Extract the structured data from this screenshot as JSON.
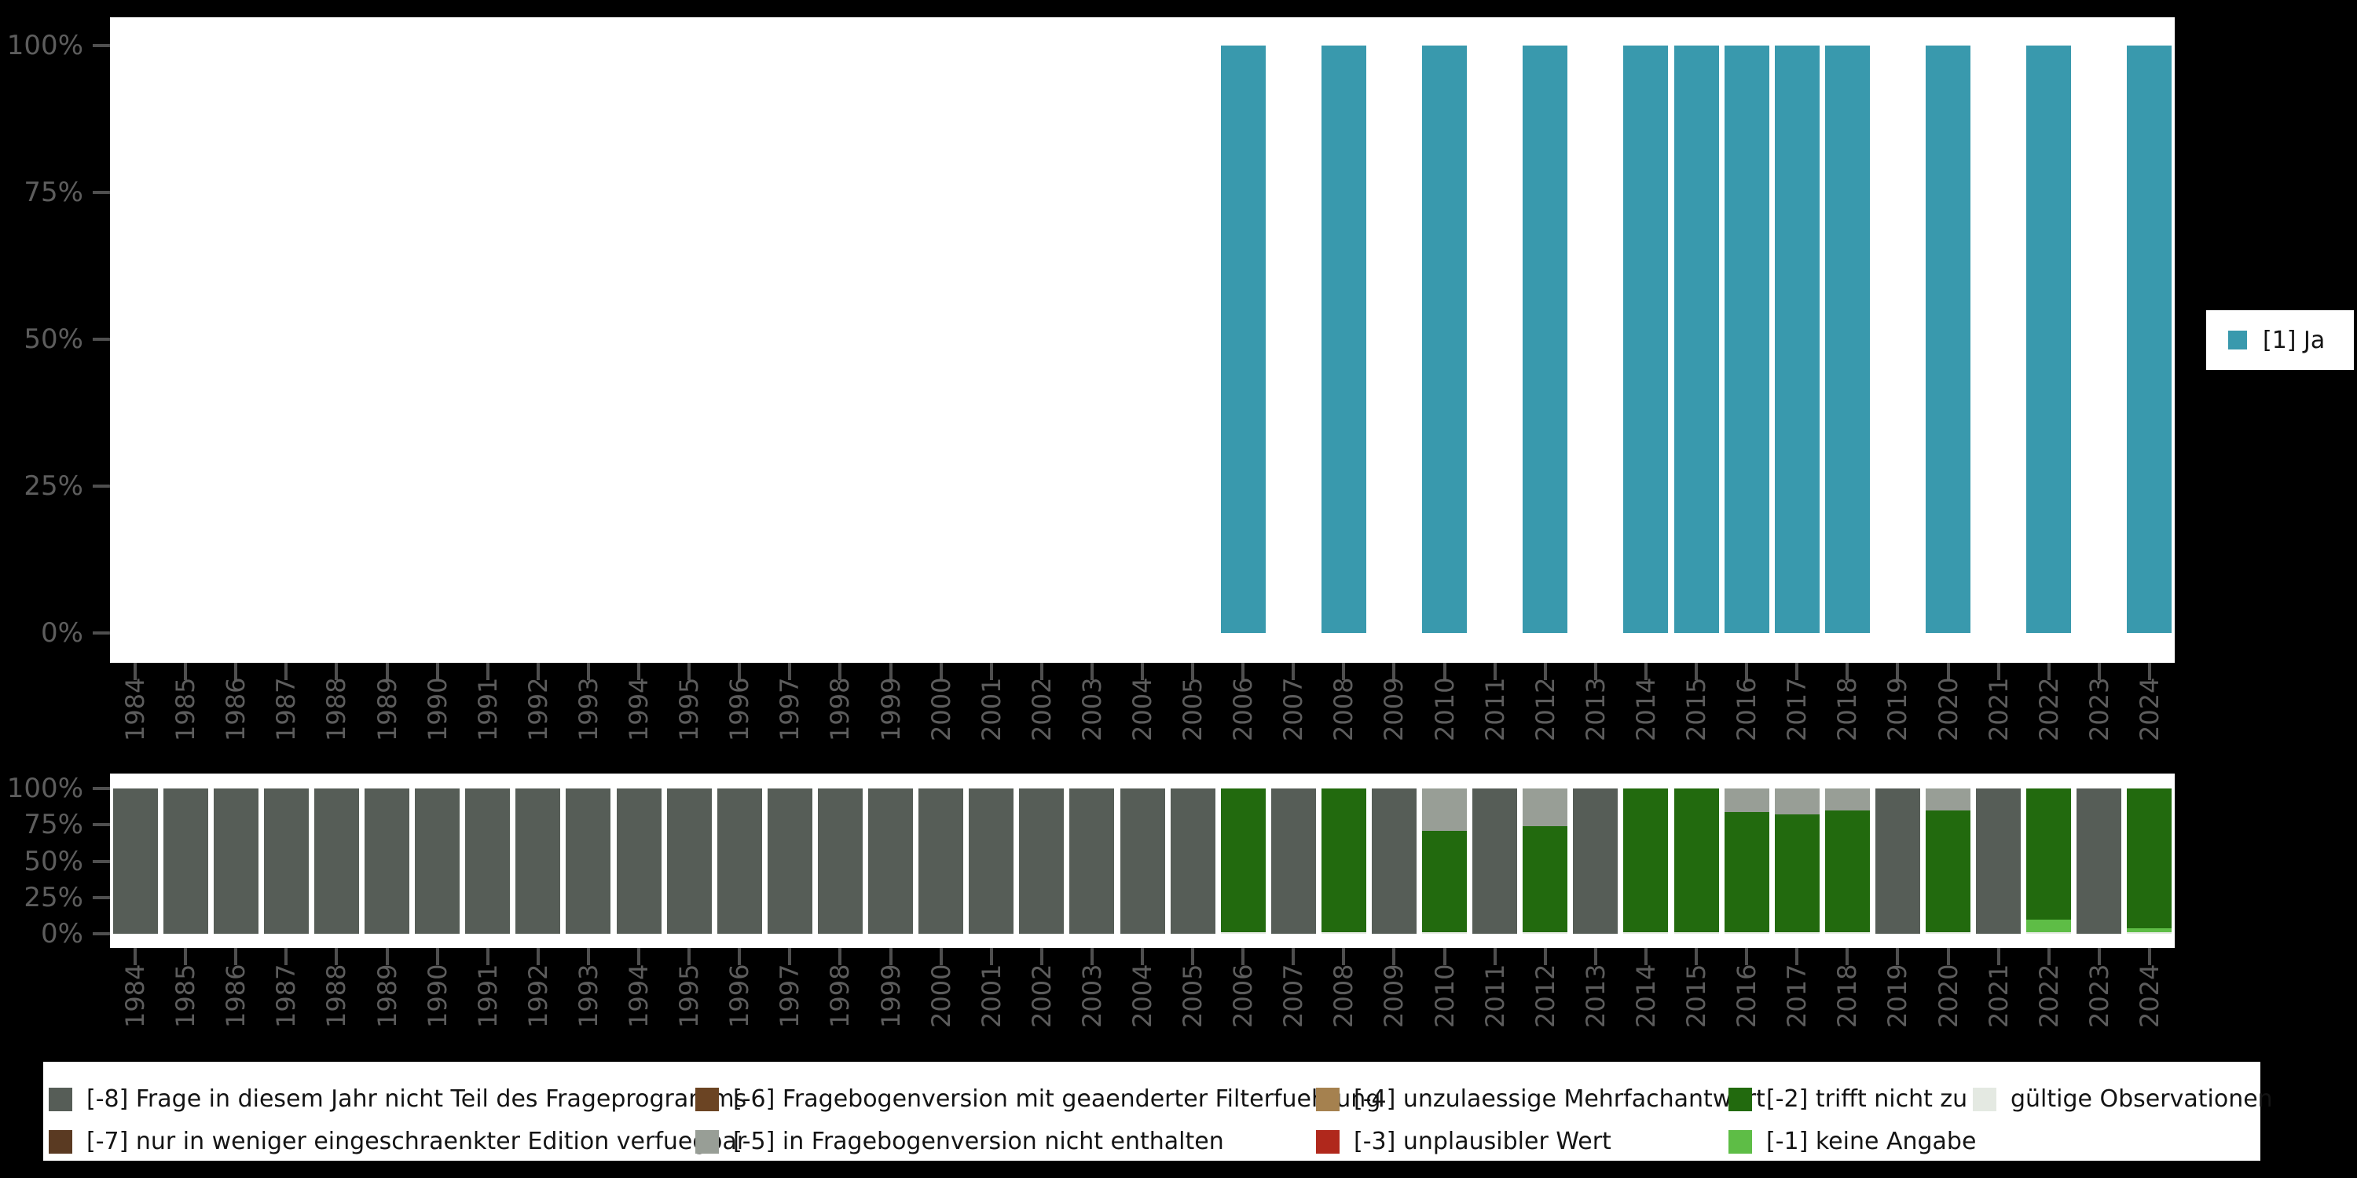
{
  "colors": {
    "background": "#000000",
    "panel": "#ffffff",
    "axis_text": "#5d5d5d",
    "tick": "#4f4f4f",
    "legend_text": "#141414",
    "categories": {
      "ja": "#3999AD",
      "-8": "#565D57",
      "-7": "#5A3A22",
      "-6": "#6B4423",
      "-5": "#989E96",
      "-4": "#A5814F",
      "-3": "#B0281C",
      "-2": "#226A0E",
      "-1": "#5EBD46",
      "valid": "#E4E9E2"
    }
  },
  "top_legend": {
    "label": "[1] Ja",
    "color_key": "ja"
  },
  "chart_data": [
    {
      "type": "bar",
      "title": "",
      "ylabel": "",
      "ylim": [
        0,
        100
      ],
      "grid": false,
      "legend_position": "right",
      "legend": [
        {
          "label": "[1] Ja",
          "color_key": "ja"
        }
      ],
      "y_ticks": [
        "100%",
        "75%",
        "50%",
        "25%",
        "0%"
      ],
      "categories": [
        1984,
        1985,
        1986,
        1987,
        1988,
        1989,
        1990,
        1991,
        1992,
        1993,
        1994,
        1995,
        1996,
        1997,
        1998,
        1999,
        2000,
        2001,
        2002,
        2003,
        2004,
        2005,
        2006,
        2007,
        2008,
        2009,
        2010,
        2011,
        2012,
        2013,
        2014,
        2015,
        2016,
        2017,
        2018,
        2019,
        2020,
        2021,
        2022,
        2023,
        2024
      ],
      "series": [
        {
          "name": "[1] Ja",
          "color_key": "ja",
          "values": [
            0,
            0,
            0,
            0,
            0,
            0,
            0,
            0,
            0,
            0,
            0,
            0,
            0,
            0,
            0,
            0,
            0,
            0,
            0,
            0,
            0,
            0,
            100,
            0,
            100,
            0,
            100,
            0,
            100,
            0,
            100,
            100,
            100,
            100,
            100,
            0,
            100,
            0,
            100,
            0,
            100
          ]
        }
      ]
    },
    {
      "type": "stacked-bar",
      "title": "",
      "ylabel": "",
      "ylim": [
        0,
        100
      ],
      "y_ticks": [
        "100%",
        "75%",
        "50%",
        "25%",
        "0%"
      ],
      "categories": [
        1984,
        1985,
        1986,
        1987,
        1988,
        1989,
        1990,
        1991,
        1992,
        1993,
        1994,
        1995,
        1996,
        1997,
        1998,
        1999,
        2000,
        2001,
        2002,
        2003,
        2004,
        2005,
        2006,
        2007,
        2008,
        2009,
        2010,
        2011,
        2012,
        2013,
        2014,
        2015,
        2016,
        2017,
        2018,
        2019,
        2020,
        2021,
        2022,
        2023,
        2024
      ],
      "bars": [
        {
          "year": 1984,
          "segments": [
            {
              "code": "-8",
              "pct": 100
            }
          ]
        },
        {
          "year": 1985,
          "segments": [
            {
              "code": "-8",
              "pct": 100
            }
          ]
        },
        {
          "year": 1986,
          "segments": [
            {
              "code": "-8",
              "pct": 100
            }
          ]
        },
        {
          "year": 1987,
          "segments": [
            {
              "code": "-8",
              "pct": 100
            }
          ]
        },
        {
          "year": 1988,
          "segments": [
            {
              "code": "-8",
              "pct": 100
            }
          ]
        },
        {
          "year": 1989,
          "segments": [
            {
              "code": "-8",
              "pct": 100
            }
          ]
        },
        {
          "year": 1990,
          "segments": [
            {
              "code": "-8",
              "pct": 100
            }
          ]
        },
        {
          "year": 1991,
          "segments": [
            {
              "code": "-8",
              "pct": 100
            }
          ]
        },
        {
          "year": 1992,
          "segments": [
            {
              "code": "-8",
              "pct": 100
            }
          ]
        },
        {
          "year": 1993,
          "segments": [
            {
              "code": "-8",
              "pct": 100
            }
          ]
        },
        {
          "year": 1994,
          "segments": [
            {
              "code": "-8",
              "pct": 100
            }
          ]
        },
        {
          "year": 1995,
          "segments": [
            {
              "code": "-8",
              "pct": 100
            }
          ]
        },
        {
          "year": 1996,
          "segments": [
            {
              "code": "-8",
              "pct": 100
            }
          ]
        },
        {
          "year": 1997,
          "segments": [
            {
              "code": "-8",
              "pct": 100
            }
          ]
        },
        {
          "year": 1998,
          "segments": [
            {
              "code": "-8",
              "pct": 100
            }
          ]
        },
        {
          "year": 1999,
          "segments": [
            {
              "code": "-8",
              "pct": 100
            }
          ]
        },
        {
          "year": 2000,
          "segments": [
            {
              "code": "-8",
              "pct": 100
            }
          ]
        },
        {
          "year": 2001,
          "segments": [
            {
              "code": "-8",
              "pct": 100
            }
          ]
        },
        {
          "year": 2002,
          "segments": [
            {
              "code": "-8",
              "pct": 100
            }
          ]
        },
        {
          "year": 2003,
          "segments": [
            {
              "code": "-8",
              "pct": 100
            }
          ]
        },
        {
          "year": 2004,
          "segments": [
            {
              "code": "-8",
              "pct": 100
            }
          ]
        },
        {
          "year": 2005,
          "segments": [
            {
              "code": "-8",
              "pct": 100
            }
          ]
        },
        {
          "year": 2006,
          "segments": [
            {
              "code": "-2",
              "pct": 99
            },
            {
              "code": "valid",
              "pct": 1
            }
          ]
        },
        {
          "year": 2007,
          "segments": [
            {
              "code": "-8",
              "pct": 100
            }
          ]
        },
        {
          "year": 2008,
          "segments": [
            {
              "code": "-2",
              "pct": 99
            },
            {
              "code": "valid",
              "pct": 1
            }
          ]
        },
        {
          "year": 2009,
          "segments": [
            {
              "code": "-8",
              "pct": 100
            }
          ]
        },
        {
          "year": 2010,
          "segments": [
            {
              "code": "-5",
              "pct": 29
            },
            {
              "code": "-2",
              "pct": 70
            },
            {
              "code": "valid",
              "pct": 1
            }
          ]
        },
        {
          "year": 2011,
          "segments": [
            {
              "code": "-8",
              "pct": 100
            }
          ]
        },
        {
          "year": 2012,
          "segments": [
            {
              "code": "-5",
              "pct": 26
            },
            {
              "code": "-2",
              "pct": 73
            },
            {
              "code": "valid",
              "pct": 1
            }
          ]
        },
        {
          "year": 2013,
          "segments": [
            {
              "code": "-8",
              "pct": 100
            }
          ]
        },
        {
          "year": 2014,
          "segments": [
            {
              "code": "-2",
              "pct": 99
            },
            {
              "code": "valid",
              "pct": 1
            }
          ]
        },
        {
          "year": 2015,
          "segments": [
            {
              "code": "-2",
              "pct": 99
            },
            {
              "code": "valid",
              "pct": 1
            }
          ]
        },
        {
          "year": 2016,
          "segments": [
            {
              "code": "-5",
              "pct": 16
            },
            {
              "code": "-2",
              "pct": 83
            },
            {
              "code": "valid",
              "pct": 1
            }
          ]
        },
        {
          "year": 2017,
          "segments": [
            {
              "code": "-5",
              "pct": 18
            },
            {
              "code": "-2",
              "pct": 81
            },
            {
              "code": "valid",
              "pct": 1
            }
          ]
        },
        {
          "year": 2018,
          "segments": [
            {
              "code": "-5",
              "pct": 15
            },
            {
              "code": "-2",
              "pct": 84
            },
            {
              "code": "valid",
              "pct": 1
            }
          ]
        },
        {
          "year": 2019,
          "segments": [
            {
              "code": "-8",
              "pct": 100
            }
          ]
        },
        {
          "year": 2020,
          "segments": [
            {
              "code": "-5",
              "pct": 15
            },
            {
              "code": "-2",
              "pct": 84
            },
            {
              "code": "valid",
              "pct": 1
            }
          ]
        },
        {
          "year": 2021,
          "segments": [
            {
              "code": "-8",
              "pct": 100
            }
          ]
        },
        {
          "year": 2022,
          "segments": [
            {
              "code": "-2",
              "pct": 90
            },
            {
              "code": "-1",
              "pct": 9
            },
            {
              "code": "valid",
              "pct": 1
            }
          ]
        },
        {
          "year": 2023,
          "segments": [
            {
              "code": "-8",
              "pct": 100
            }
          ]
        },
        {
          "year": 2024,
          "segments": [
            {
              "code": "-2",
              "pct": 96
            },
            {
              "code": "-1",
              "pct": 3
            },
            {
              "code": "valid",
              "pct": 1
            }
          ]
        }
      ]
    }
  ],
  "bottom_legend": {
    "columns": [
      [
        {
          "code": "-8",
          "label": "[-8] Frage in diesem Jahr nicht Teil des Frageprogramms"
        },
        {
          "code": "-7",
          "label": "[-7] nur in weniger eingeschraenkter Edition verfuegbar"
        }
      ],
      [
        {
          "code": "-6",
          "label": "[-6] Fragebogenversion mit geaenderter Filterfuehrung"
        },
        {
          "code": "-5",
          "label": "[-5] in Fragebogenversion nicht enthalten"
        }
      ],
      [
        {
          "code": "-4",
          "label": "[-4] unzulaessige Mehrfachantwort"
        },
        {
          "code": "-3",
          "label": "[-3] unplausibler Wert"
        }
      ],
      [
        {
          "code": "-2",
          "label": "[-2] trifft nicht zu"
        },
        {
          "code": "-1",
          "label": "[-1] keine Angabe"
        }
      ],
      [
        {
          "code": "valid",
          "label": "gültige Observationen"
        }
      ]
    ]
  }
}
